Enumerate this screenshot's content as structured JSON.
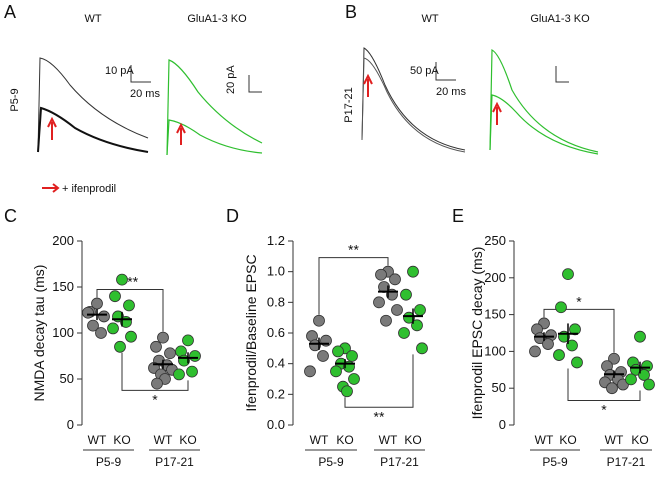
{
  "traces": {
    "letters": [
      "A",
      "B",
      "C",
      "D",
      "E"
    ],
    "panel_a": {
      "wt": "WT",
      "ko": "GluA1-3 KO",
      "age": "P5-9",
      "wt_scale_y": "10 pA",
      "wt_scale_x": "20 ms",
      "ko_scale_y": "20 pA"
    },
    "panel_b": {
      "wt": "WT",
      "ko": "GluA1-3 KO",
      "age": "P17-21",
      "wt_scale_y": "50 pA",
      "wt_scale_x": "20 ms"
    },
    "legend": "+ ifenprodil"
  },
  "chart_data": [
    {
      "type": "strip",
      "y_label": "NMDA decay tau (ms)",
      "categories": [
        "WT",
        "KO",
        "WT",
        "KO"
      ],
      "groups": [
        "P5-9",
        "P17-21"
      ],
      "colors": [
        "#7a7a7a",
        "#2fbf2f",
        "#7a7a7a",
        "#2fbf2f"
      ],
      "points": [
        [
          132,
          123,
          118,
          108,
          100,
          122
        ],
        [
          158,
          140,
          130,
          118,
          112,
          105,
          96,
          85
        ],
        [
          95,
          85,
          78,
          70,
          65,
          62,
          60,
          55,
          50,
          45
        ],
        [
          92,
          80,
          75,
          70,
          58,
          55
        ]
      ],
      "means": [
        120,
        115,
        66,
        73
      ],
      "errors": [
        6,
        8,
        5,
        6
      ],
      "annotations": [
        "***",
        "*"
      ],
      "ylim": [
        0,
        200
      ],
      "yticks": [
        0,
        50,
        100,
        150,
        200
      ]
    },
    {
      "type": "strip",
      "y_label": "Ifenprodil/Baseline EPSC",
      "categories": [
        "WT",
        "KO",
        "WT",
        "KO"
      ],
      "groups": [
        "P5-9",
        "P17-21"
      ],
      "colors": [
        "#7a7a7a",
        "#2fbf2f",
        "#7a7a7a",
        "#2fbf2f"
      ],
      "points": [
        [
          0.68,
          0.58,
          0.55,
          0.52,
          0.45,
          0.35
        ],
        [
          0.5,
          0.48,
          0.45,
          0.4,
          0.38,
          0.35,
          0.3,
          0.25,
          0.22
        ],
        [
          1.0,
          0.98,
          0.95,
          0.9,
          0.85,
          0.8,
          0.75,
          0.68
        ],
        [
          1.0,
          0.85,
          0.75,
          0.7,
          0.65,
          0.6,
          0.5
        ]
      ],
      "means": [
        0.53,
        0.4,
        0.87,
        0.71
      ],
      "errors": [
        0.04,
        0.03,
        0.04,
        0.05
      ],
      "annotations": [
        "**",
        "**"
      ],
      "ylim": [
        0,
        1.2
      ],
      "yticks": [
        {
          "value": 0,
          "label": "0.0"
        },
        0.2,
        0.4,
        0.6,
        0.8,
        {
          "value": 1,
          "label": "1.0"
        },
        1.2
      ]
    },
    {
      "type": "strip",
      "y_label": "Ifenprodil EPSC decay (ms)",
      "categories": [
        "WT",
        "KO",
        "WT",
        "KO"
      ],
      "groups": [
        "P5-9",
        "P17-21"
      ],
      "colors": [
        "#7a7a7a",
        "#2fbf2f",
        "#7a7a7a",
        "#2fbf2f"
      ],
      "points": [
        [
          138,
          130,
          122,
          118,
          110,
          100
        ],
        [
          205,
          160,
          130,
          120,
          108,
          95,
          85
        ],
        [
          90,
          80,
          72,
          68,
          62,
          58,
          55,
          50
        ],
        [
          120,
          85,
          80,
          75,
          68,
          62,
          55
        ]
      ],
      "means": [
        120,
        124,
        69,
        78
      ],
      "errors": [
        6,
        14,
        5,
        8
      ],
      "annotations": [
        "*",
        "*"
      ],
      "ylim": [
        0,
        250
      ],
      "yticks": [
        0,
        50,
        100,
        150,
        200,
        250
      ]
    }
  ]
}
